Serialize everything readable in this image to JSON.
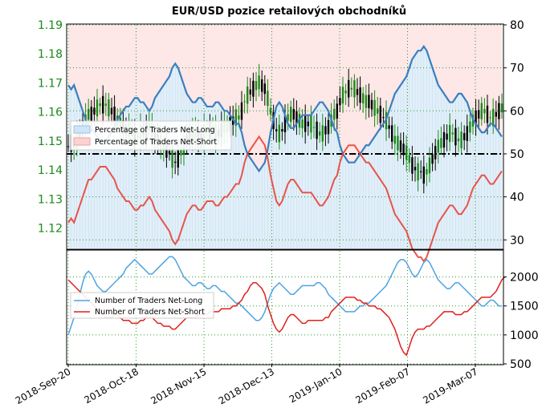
{
  "title": "EUR/USD pozice retailových obchodníků",
  "colors": {
    "long_fill": "#cfe4f5",
    "short_fill": "#fbd3d3",
    "long_line": "#3a7fbf",
    "short_line": "#e8392c",
    "long_line_bottom": "#4da3e0",
    "short_line_bottom": "#e0201a",
    "price_axis": "#1a8a1a",
    "grid": "#2e9b2e",
    "candle_up": "#1a8a1a",
    "candle_down": "#000000"
  },
  "chart_data": [
    {
      "type": "line",
      "title": "EUR/USD pozice retailových obchodníků",
      "legend": [
        "Percentage of Traders Net-Long",
        "Percentage of Traders Net-Short"
      ],
      "legend_position": "left",
      "left_axis_ticks": [
        "1.19",
        "1.18",
        "1.17",
        "1.16",
        "1.15",
        "1.14",
        "1.13",
        "1.12"
      ],
      "left_ylim": [
        1.113,
        1.19
      ],
      "right_axis_ticks": [
        "80",
        "70",
        "60",
        "50",
        "40",
        "30"
      ],
      "right_ylim": [
        28,
        80
      ],
      "x_labels": [
        "2018-Sep-20",
        "2018-Oct-18",
        "2018-Nov-15",
        "2018-Dec-13",
        "2019-Jan-10",
        "2019-Feb-07",
        "2019-Mar-07"
      ],
      "reference_line": 50,
      "grid": true,
      "series": [
        {
          "name": "Percentage of Traders Net-Long",
          "values": [
            66,
            65,
            66,
            64,
            62,
            60,
            58,
            56,
            56,
            55,
            54,
            53,
            53,
            53,
            54,
            55,
            56,
            58,
            59,
            60,
            61,
            61,
            62,
            63,
            63,
            62,
            62,
            61,
            60,
            61,
            63,
            64,
            65,
            66,
            67,
            68,
            70,
            71,
            70,
            68,
            66,
            64,
            63,
            62,
            62,
            63,
            63,
            62,
            61,
            61,
            61,
            62,
            62,
            61,
            60,
            60,
            59,
            58,
            57,
            57,
            55,
            52,
            50,
            49,
            48,
            47,
            46,
            47,
            48,
            51,
            55,
            58,
            61,
            62,
            61,
            59,
            57,
            56,
            56,
            57,
            58,
            59,
            59,
            59,
            59,
            60,
            61,
            62,
            62,
            61,
            60,
            58,
            56,
            55,
            52,
            50,
            49,
            48,
            48,
            48,
            49,
            50,
            51,
            52,
            52,
            53,
            54,
            55,
            56,
            57,
            58,
            60,
            62,
            64,
            65,
            66,
            67,
            68,
            70,
            72,
            73,
            74,
            74,
            75,
            74,
            72,
            70,
            68,
            66,
            65,
            64,
            63,
            62,
            62,
            63,
            64,
            64,
            63,
            62,
            60,
            58,
            57,
            56,
            55,
            55,
            56,
            57,
            57,
            56,
            55,
            54
          ]
        },
        {
          "name": "Percentage of Traders Net-Short",
          "values": [
            34,
            35,
            34,
            36,
            38,
            40,
            42,
            44,
            44,
            45,
            46,
            47,
            47,
            47,
            46,
            45,
            44,
            42,
            41,
            40,
            39,
            39,
            38,
            37,
            37,
            38,
            38,
            39,
            40,
            39,
            37,
            36,
            35,
            34,
            33,
            32,
            30,
            29,
            30,
            32,
            34,
            36,
            37,
            38,
            38,
            37,
            37,
            38,
            39,
            39,
            39,
            38,
            38,
            39,
            40,
            40,
            41,
            42,
            43,
            43,
            45,
            48,
            50,
            51,
            52,
            53,
            54,
            53,
            52,
            49,
            45,
            42,
            39,
            38,
            39,
            41,
            43,
            44,
            44,
            43,
            42,
            41,
            41,
            41,
            41,
            40,
            39,
            38,
            38,
            39,
            40,
            42,
            44,
            45,
            48,
            50,
            51,
            52,
            52,
            52,
            51,
            50,
            49,
            48,
            48,
            47,
            46,
            45,
            44,
            43,
            42,
            40,
            38,
            36,
            35,
            34,
            33,
            32,
            30,
            28,
            27,
            26,
            26,
            25,
            26,
            28,
            30,
            32,
            34,
            35,
            36,
            37,
            38,
            38,
            37,
            36,
            36,
            37,
            38,
            40,
            42,
            43,
            44,
            45,
            45,
            44,
            43,
            43,
            44,
            45,
            46
          ]
        }
      ]
    },
    {
      "type": "line",
      "legend": [
        "Number of Traders Net-Long",
        "Number of Traders Net-Short"
      ],
      "legend_position": "left",
      "right_axis_ticks": [
        "2000",
        "1500",
        "1000",
        "500"
      ],
      "ylim": [
        500,
        2450
      ],
      "grid": true,
      "series": [
        {
          "name": "Number of Traders Net-Long",
          "values": [
            1000,
            1150,
            1300,
            1500,
            1700,
            1900,
            2050,
            2100,
            2050,
            1950,
            1850,
            1800,
            1750,
            1750,
            1800,
            1850,
            1900,
            1950,
            2000,
            2050,
            2150,
            2200,
            2250,
            2300,
            2250,
            2200,
            2150,
            2100,
            2050,
            2050,
            2100,
            2150,
            2200,
            2250,
            2300,
            2350,
            2350,
            2300,
            2200,
            2100,
            2000,
            1950,
            1900,
            1850,
            1850,
            1900,
            1900,
            1850,
            1800,
            1800,
            1850,
            1850,
            1800,
            1750,
            1750,
            1700,
            1650,
            1600,
            1550,
            1550,
            1500,
            1450,
            1400,
            1350,
            1300,
            1250,
            1250,
            1300,
            1400,
            1550,
            1700,
            1800,
            1850,
            1900,
            1850,
            1800,
            1750,
            1700,
            1700,
            1750,
            1800,
            1850,
            1850,
            1850,
            1850,
            1850,
            1900,
            1900,
            1850,
            1800,
            1700,
            1650,
            1600,
            1550,
            1500,
            1450,
            1400,
            1400,
            1400,
            1400,
            1450,
            1500,
            1500,
            1550,
            1550,
            1600,
            1650,
            1700,
            1750,
            1800,
            1850,
            1950,
            2050,
            2150,
            2250,
            2300,
            2300,
            2250,
            2150,
            2050,
            2000,
            2050,
            2150,
            2250,
            2300,
            2250,
            2150,
            2050,
            1950,
            1900,
            1850,
            1800,
            1800,
            1850,
            1900,
            1900,
            1850,
            1800,
            1750,
            1700,
            1650,
            1600,
            1550,
            1500,
            1500,
            1550,
            1600,
            1600,
            1550,
            1500,
            1500
          ]
        },
        {
          "name": "Number of Traders Net-Short",
          "values": [
            1950,
            1900,
            1850,
            1800,
            1750,
            1700,
            1650,
            1600,
            1550,
            1500,
            1450,
            1400,
            1350,
            1300,
            1300,
            1300,
            1350,
            1350,
            1300,
            1250,
            1250,
            1250,
            1200,
            1200,
            1200,
            1250,
            1250,
            1300,
            1300,
            1300,
            1250,
            1200,
            1200,
            1150,
            1150,
            1150,
            1100,
            1100,
            1150,
            1200,
            1250,
            1300,
            1300,
            1300,
            1300,
            1350,
            1350,
            1350,
            1350,
            1400,
            1400,
            1400,
            1400,
            1450,
            1450,
            1450,
            1450,
            1500,
            1500,
            1550,
            1600,
            1700,
            1750,
            1850,
            1900,
            1900,
            1850,
            1800,
            1700,
            1500,
            1350,
            1200,
            1100,
            1050,
            1100,
            1200,
            1300,
            1350,
            1350,
            1300,
            1250,
            1200,
            1200,
            1250,
            1250,
            1250,
            1250,
            1250,
            1250,
            1300,
            1300,
            1400,
            1450,
            1500,
            1550,
            1600,
            1650,
            1650,
            1650,
            1650,
            1600,
            1600,
            1550,
            1550,
            1500,
            1500,
            1500,
            1450,
            1450,
            1400,
            1350,
            1300,
            1200,
            1100,
            950,
            800,
            700,
            650,
            800,
            950,
            1050,
            1100,
            1100,
            1100,
            1150,
            1150,
            1200,
            1250,
            1300,
            1350,
            1400,
            1400,
            1400,
            1400,
            1350,
            1350,
            1350,
            1400,
            1400,
            1450,
            1500,
            1550,
            1600,
            1650,
            1650,
            1650,
            1650,
            1700,
            1750,
            1850,
            1950,
            2000
          ]
        }
      ]
    }
  ]
}
